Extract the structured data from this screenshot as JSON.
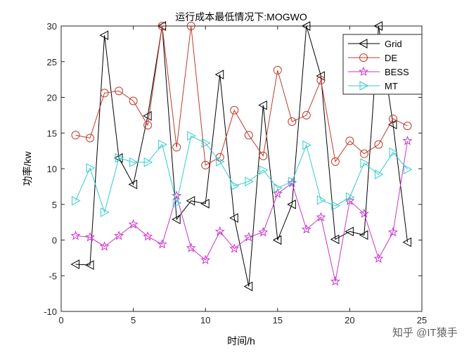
{
  "chart_data": {
    "type": "line",
    "title": "运行成本最低情况下:MOGWO",
    "xlabel": "时间/h",
    "ylabel": "功率/kw",
    "xlim": [
      0,
      25
    ],
    "ylim": [
      -10,
      30
    ],
    "xticks": [
      0,
      5,
      10,
      15,
      20,
      25
    ],
    "yticks": [
      -10,
      -5,
      0,
      5,
      10,
      15,
      20,
      25,
      30
    ],
    "grid": false,
    "legend_position": "top-right",
    "x": [
      1,
      2,
      3,
      4,
      5,
      6,
      7,
      8,
      9,
      10,
      11,
      12,
      13,
      14,
      15,
      16,
      17,
      18,
      19,
      20,
      21,
      22,
      23,
      24
    ],
    "series": [
      {
        "name": "Grid",
        "color": "#000000",
        "marker": "triangle-left",
        "values": [
          -3.4,
          -3.5,
          28.7,
          11.5,
          7.8,
          17.4,
          30,
          2.9,
          5.5,
          5.1,
          23.2,
          3.1,
          -6.5,
          18.9,
          0,
          5.0,
          30,
          23.0,
          0.1,
          1.2,
          0.7,
          30,
          16.2,
          -0.3
        ]
      },
      {
        "name": "DE",
        "color": "#c0392b",
        "marker": "circle",
        "values": [
          14.7,
          14.3,
          20.6,
          20.9,
          19.5,
          16.1,
          30,
          13.0,
          30,
          10.5,
          11.6,
          18.2,
          14.7,
          11.8,
          23.8,
          16.6,
          17.5,
          22.4,
          11.0,
          13.9,
          12.1,
          13.4,
          17.0,
          16.0
        ]
      },
      {
        "name": "BESS",
        "color": "#cc33cc",
        "marker": "pentagram",
        "values": [
          0.6,
          0.4,
          -0.9,
          0.6,
          2.2,
          0.5,
          -0.6,
          6.2,
          -1.1,
          -2.8,
          1.2,
          -1.2,
          0.4,
          1.1,
          6.5,
          8.0,
          1.5,
          3.2,
          -5.8,
          5.5,
          3.7,
          -2.6,
          1.1,
          13.9
        ]
      },
      {
        "name": "MT",
        "color": "#33cccc",
        "marker": "triangle-right",
        "values": [
          5.5,
          10.1,
          3.9,
          11.5,
          10.9,
          10.9,
          13.4,
          5.2,
          14.6,
          13.6,
          11.0,
          7.6,
          8.2,
          9.8,
          7.3,
          8.2,
          13.3,
          5.6,
          4.8,
          6.0,
          10.8,
          9.2,
          12.3,
          9.9
        ]
      }
    ]
  },
  "watermark": "知乎 @IT猿手"
}
